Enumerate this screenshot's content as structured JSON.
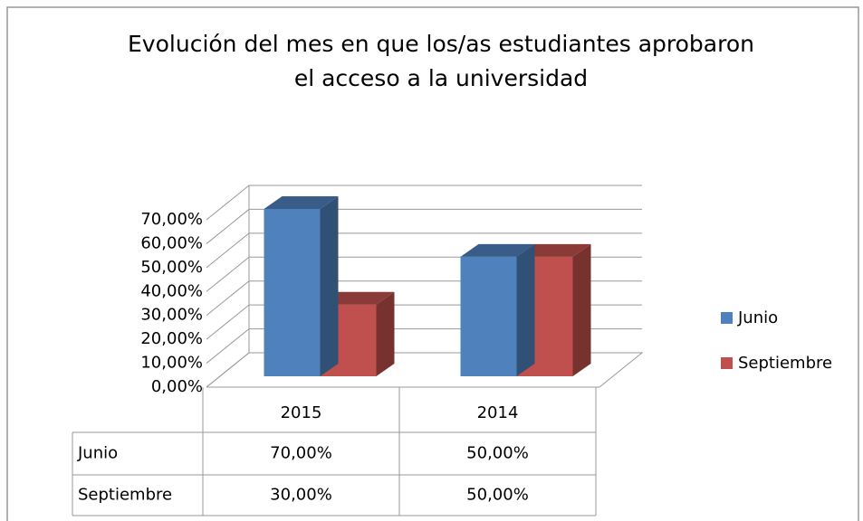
{
  "chart_data": {
    "type": "bar",
    "title": [
      "Evolución del mes en que los/as estudiantes aprobaron",
      "el acceso a la universidad"
    ],
    "categories": [
      "2015",
      "2014"
    ],
    "series": [
      {
        "name": "Junio",
        "color": "#4f81bd",
        "values": [
          70,
          50
        ],
        "value_labels": [
          "70,00%",
          "50,00%"
        ]
      },
      {
        "name": "Septiembre",
        "color": "#c0504d",
        "values": [
          30,
          50
        ],
        "value_labels": [
          "30,00%",
          "50,00%"
        ]
      }
    ],
    "ylim": [
      0,
      70
    ],
    "yticks": [
      {
        "value": 0,
        "label": "0,00%"
      },
      {
        "value": 10,
        "label": "10,00%"
      },
      {
        "value": 20,
        "label": "20,00%"
      },
      {
        "value": 30,
        "label": "30,00%"
      },
      {
        "value": 40,
        "label": "40,00%"
      },
      {
        "value": 50,
        "label": "50,00%"
      },
      {
        "value": 60,
        "label": "60,00%"
      },
      {
        "value": 70,
        "label": "70,00%"
      }
    ],
    "grid": true,
    "legend": "right"
  }
}
